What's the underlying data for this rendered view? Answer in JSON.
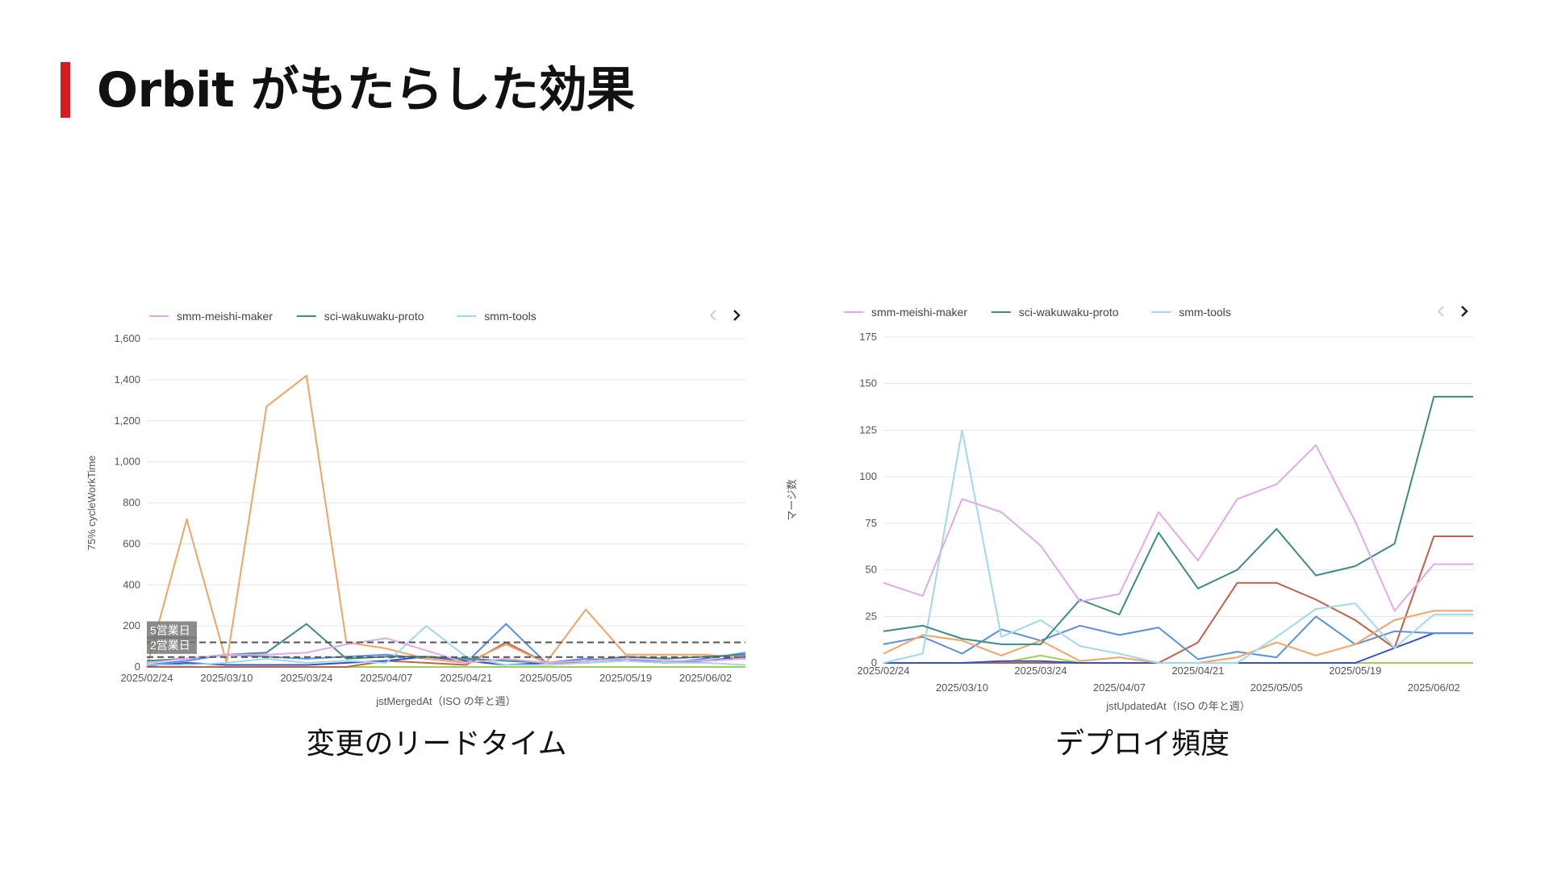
{
  "slide": {
    "title": "Orbit がもたらした効果",
    "accent_color": "#d71920"
  },
  "captions": {
    "left": "変更のリードタイム",
    "right": "デプロイ頻度"
  },
  "chart_data": [
    {
      "type": "line",
      "title": "",
      "xlabel": "jstMergedAt（ISO の年と週）",
      "ylabel": "75% cycleWorkTime",
      "ylim": [
        0,
        1600
      ],
      "yticks": [
        0,
        200,
        400,
        600,
        800,
        1000,
        1200,
        1400,
        1600
      ],
      "ytick_labels": [
        "0",
        "200",
        "400",
        "600",
        "800",
        "1,000",
        "1,200",
        "1,400",
        "1,600"
      ],
      "x": [
        "2025/02/24",
        "2025/03/03",
        "2025/03/10",
        "2025/03/17",
        "2025/03/24",
        "2025/03/31",
        "2025/04/07",
        "2025/04/14",
        "2025/04/21",
        "2025/04/28",
        "2025/05/05",
        "2025/05/12",
        "2025/05/19",
        "2025/05/26",
        "2025/06/02",
        "2025/06/09"
      ],
      "xtick_labels": [
        "2025/02/24",
        "2025/03/10",
        "2025/03/24",
        "2025/04/07",
        "2025/04/21",
        "2025/05/05",
        "2025/05/19",
        "2025/06/02"
      ],
      "legend": [
        "smm-meishi-maker",
        "sci-wakuwaku-proto",
        "smm-tools"
      ],
      "legend_placement": "top-left",
      "legend_has_more_arrow": true,
      "grid": true,
      "reference_lines": [
        {
          "label": "5営業日",
          "value": 120
        },
        {
          "label": "2営業日",
          "value": 48
        }
      ],
      "series": [
        {
          "name": "smm-meishi-maker",
          "color": "#e2a9e8",
          "values": [
            20,
            40,
            60,
            60,
            70,
            110,
            140,
            80,
            20,
            40,
            20,
            30,
            40,
            30,
            30,
            40
          ]
        },
        {
          "name": "sci-wakuwaku-proto",
          "color": "#3d8c84",
          "values": [
            30,
            40,
            60,
            70,
            210,
            40,
            50,
            50,
            40,
            30,
            20,
            30,
            50,
            40,
            50,
            60
          ]
        },
        {
          "name": "smm-tools",
          "color": "#9fd9ea",
          "values": [
            10,
            10,
            20,
            40,
            20,
            30,
            20,
            200,
            50,
            10,
            10,
            20,
            30,
            20,
            20,
            10
          ]
        },
        {
          "color": "#f4a362",
          "values": [
            0,
            720,
            20,
            1270,
            1420,
            120,
            90,
            40,
            20,
            110,
            20,
            280,
            60,
            60,
            60,
            40
          ]
        },
        {
          "color": "#5b8fe0",
          "values": [
            10,
            30,
            60,
            50,
            40,
            50,
            60,
            40,
            20,
            210,
            20,
            40,
            30,
            20,
            40,
            70
          ]
        },
        {
          "color": "#2f52c4",
          "values": [
            5,
            20,
            10,
            10,
            10,
            20,
            30,
            50,
            30,
            10,
            20,
            30,
            40,
            20,
            30,
            50
          ]
        },
        {
          "color": "#c0624a",
          "values": [
            0,
            0,
            0,
            0,
            0,
            0,
            30,
            20,
            10,
            120,
            20,
            20,
            30,
            20,
            30,
            40
          ]
        },
        {
          "color": "#a3cf4e",
          "values": [
            0,
            0,
            0,
            0,
            0,
            0,
            0,
            0,
            0,
            0,
            0,
            0,
            0,
            0,
            0,
            0
          ]
        }
      ]
    },
    {
      "type": "line",
      "title": "",
      "xlabel": "jstUpdatedAt（ISO の年と週）",
      "ylabel": "マージ数",
      "ylim": [
        0,
        175
      ],
      "yticks": [
        0,
        25,
        50,
        75,
        100,
        125,
        150,
        175
      ],
      "ytick_labels": [
        "0",
        "25",
        "50",
        "75",
        "100",
        "125",
        "150",
        "175"
      ],
      "x": [
        "2025/02/24",
        "2025/03/03",
        "2025/03/10",
        "2025/03/17",
        "2025/03/24",
        "2025/03/31",
        "2025/04/07",
        "2025/04/14",
        "2025/04/21",
        "2025/04/28",
        "2025/05/05",
        "2025/05/12",
        "2025/05/19",
        "2025/05/26",
        "2025/06/02",
        "2025/06/09"
      ],
      "xtick_labels_upper": [
        "2025/02/24",
        "2025/03/24",
        "2025/04/21",
        "2025/05/19"
      ],
      "xtick_labels_lower": [
        "2025/03/10",
        "2025/04/07",
        "2025/05/05",
        "2025/06/02"
      ],
      "legend": [
        "smm-meishi-maker",
        "sci-wakuwaku-proto",
        "smm-tools"
      ],
      "legend_placement": "top-left",
      "legend_has_more_arrow": true,
      "grid": true,
      "series": [
        {
          "name": "smm-meishi-maker",
          "color": "#e2a9e8",
          "values": [
            43,
            36,
            88,
            81,
            63,
            33,
            37,
            81,
            55,
            88,
            96,
            117,
            76,
            28,
            53,
            53
          ]
        },
        {
          "name": "sci-wakuwaku-proto",
          "color": "#3d8c84",
          "values": [
            17,
            20,
            13,
            10,
            10,
            34,
            26,
            70,
            40,
            50,
            72,
            47,
            52,
            64,
            143,
            143
          ]
        },
        {
          "name": "smm-tools",
          "color": "#9fd9ea",
          "values": [
            0,
            5,
            125,
            14,
            23,
            9,
            5,
            0,
            0,
            0,
            14,
            29,
            32,
            8,
            26,
            26
          ]
        },
        {
          "color": "#f4a362",
          "values": [
            5,
            15,
            12,
            4,
            12,
            1,
            3,
            0,
            0,
            3,
            11,
            4,
            10,
            23,
            28,
            28
          ]
        },
        {
          "color": "#5b8fe0",
          "values": [
            10,
            14,
            5,
            18,
            12,
            20,
            15,
            19,
            2,
            6,
            3,
            25,
            10,
            17,
            16,
            16
          ]
        },
        {
          "color": "#2f52c4",
          "values": [
            0,
            0,
            0,
            1,
            1,
            0,
            0,
            0,
            0,
            0,
            0,
            0,
            0,
            8,
            16,
            16
          ]
        },
        {
          "color": "#c0624a",
          "values": [
            0,
            0,
            0,
            0,
            0,
            0,
            0,
            0,
            11,
            43,
            43,
            34,
            23,
            8,
            68,
            68
          ]
        },
        {
          "color": "#a3cf4e",
          "values": [
            0,
            0,
            0,
            0,
            4,
            0,
            0,
            0,
            0,
            0,
            0,
            0,
            0,
            0,
            0,
            0
          ]
        }
      ]
    }
  ]
}
